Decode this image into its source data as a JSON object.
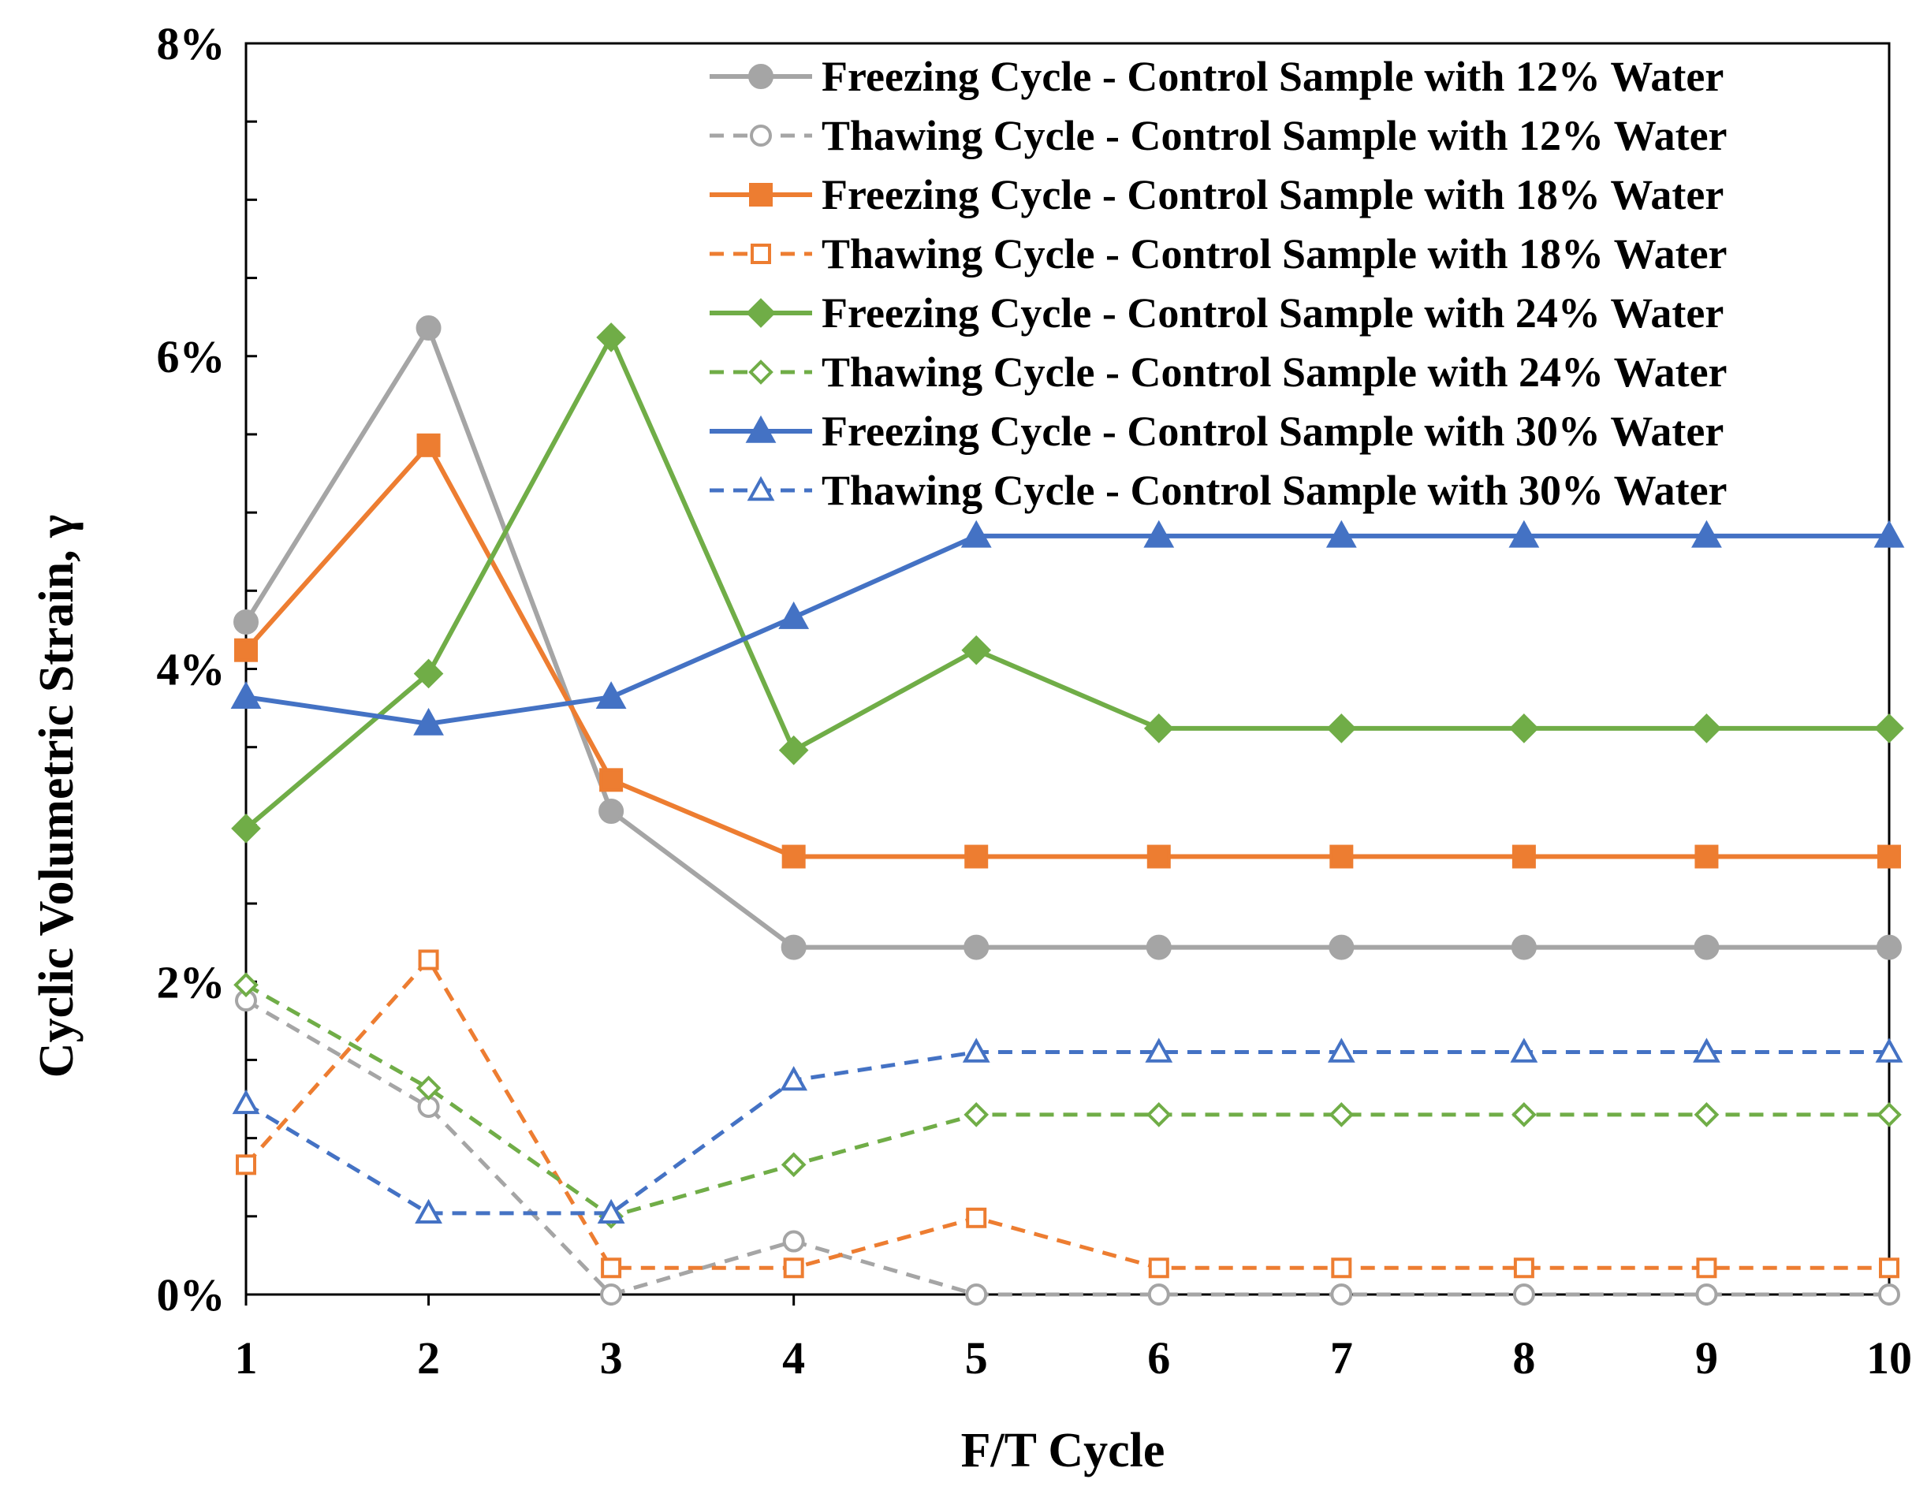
{
  "chart_data": {
    "type": "line",
    "title": "",
    "xlabel": "F/T Cycle",
    "ylabel": "Cyclic Volumetric Strain, γ",
    "x": [
      1,
      2,
      3,
      4,
      5,
      6,
      7,
      8,
      9,
      10
    ],
    "x_tick_labels": [
      "1",
      "2",
      "3",
      "4",
      "5",
      "6",
      "7",
      "8",
      "9",
      "10"
    ],
    "ylim": [
      0,
      0.08
    ],
    "y_ticks": [
      0,
      0.02,
      0.04,
      0.06,
      0.08
    ],
    "y_tick_labels": [
      "0%",
      "2%",
      "4%",
      "6%",
      "8%"
    ],
    "y_minor_step": 0.005,
    "legend_position": "top-right",
    "series": [
      {
        "name": "Freezing Cycle - Control Sample with 12% Water",
        "color": "#a5a5a5",
        "dash": false,
        "marker": "circle",
        "filled": true,
        "values": [
          0.043,
          0.0618,
          0.0309,
          0.0222,
          0.0222,
          0.0222,
          0.0222,
          0.0222,
          0.0222,
          0.0222
        ]
      },
      {
        "name": "Thawing Cycle - Control Sample with 12% Water",
        "color": "#a5a5a5",
        "dash": true,
        "marker": "circle",
        "filled": false,
        "values": [
          0.0188,
          0.012,
          0.0,
          0.0034,
          0.0,
          0.0,
          0.0,
          0.0,
          0.0,
          0.0
        ]
      },
      {
        "name": "Freezing Cycle - Control Sample with 18% Water",
        "color": "#ed7d31",
        "dash": false,
        "marker": "square",
        "filled": true,
        "values": [
          0.0412,
          0.0543,
          0.0329,
          0.028,
          0.028,
          0.028,
          0.028,
          0.028,
          0.028,
          0.028
        ]
      },
      {
        "name": "Thawing Cycle - Control Sample with 18% Water",
        "color": "#ed7d31",
        "dash": true,
        "marker": "square",
        "filled": false,
        "values": [
          0.0083,
          0.0214,
          0.0017,
          0.0017,
          0.0049,
          0.0017,
          0.0017,
          0.0017,
          0.0017,
          0.0017
        ]
      },
      {
        "name": "Freezing Cycle - Control Sample with 24% Water",
        "color": "#70ad47",
        "dash": false,
        "marker": "diamond",
        "filled": true,
        "values": [
          0.0298,
          0.0397,
          0.0612,
          0.0348,
          0.0412,
          0.0362,
          0.0362,
          0.0362,
          0.0362,
          0.0362
        ]
      },
      {
        "name": "Thawing Cycle - Control Sample with 24% Water",
        "color": "#70ad47",
        "dash": true,
        "marker": "diamond",
        "filled": false,
        "values": [
          0.0198,
          0.0132,
          0.005,
          0.0083,
          0.0115,
          0.0115,
          0.0115,
          0.0115,
          0.0115,
          0.0115
        ]
      },
      {
        "name": "Freezing Cycle - Control Sample with 30% Water",
        "color": "#4472c4",
        "dash": false,
        "marker": "triangle",
        "filled": true,
        "values": [
          0.0382,
          0.0365,
          0.0382,
          0.0433,
          0.0485,
          0.0485,
          0.0485,
          0.0485,
          0.0485,
          0.0485
        ]
      },
      {
        "name": "Thawing Cycle - Control Sample with 30% Water",
        "color": "#4472c4",
        "dash": true,
        "marker": "triangle",
        "filled": false,
        "values": [
          0.0122,
          0.0052,
          0.0052,
          0.0137,
          0.0155,
          0.0155,
          0.0155,
          0.0155,
          0.0155,
          0.0155
        ]
      }
    ]
  }
}
